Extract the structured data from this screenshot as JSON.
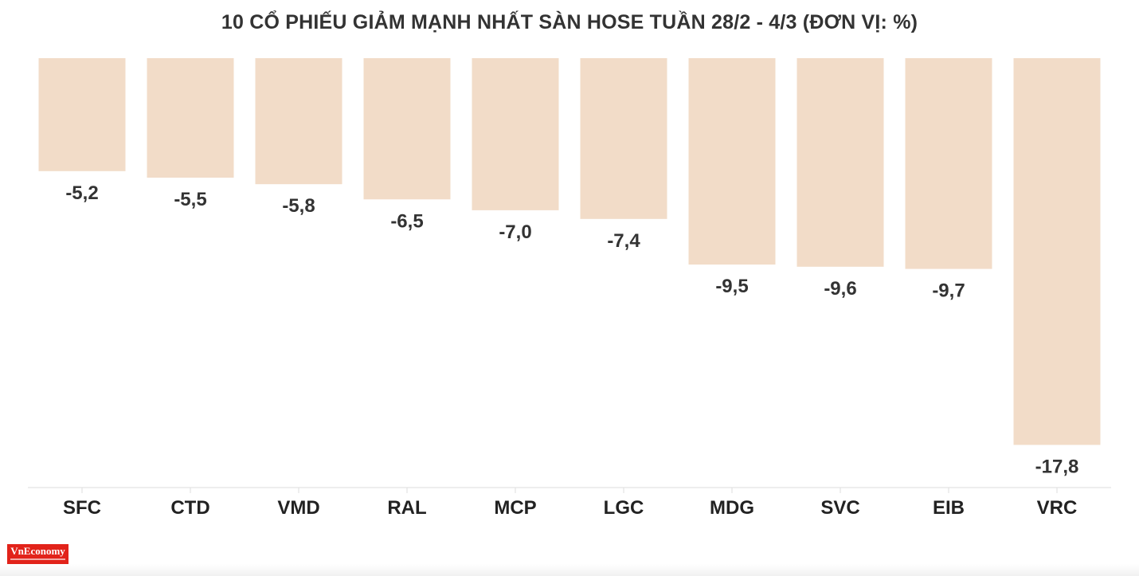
{
  "chart_data": {
    "type": "bar",
    "title": "10 CỔ PHIẾU GIẢM MẠNH NHẤT SÀN HOSE TUẦN 28/2 - 4/3 (ĐƠN VỊ: %)",
    "categories": [
      "SFC",
      "CTD",
      "VMD",
      "RAL",
      "MCP",
      "LGC",
      "MDG",
      "SVC",
      "EIB",
      "VRC"
    ],
    "values": [
      -5.2,
      -5.5,
      -5.8,
      -6.5,
      -7.0,
      -7.4,
      -9.5,
      -9.6,
      -9.7,
      -17.8
    ],
    "value_labels": [
      "-5,2",
      "-5,5",
      "-5,8",
      "-6,5",
      "-7,0",
      "-7,4",
      "-9,5",
      "-9,6",
      "-9,7",
      "-17,8"
    ],
    "ylim": [
      -19.8,
      0
    ],
    "bar_color": "#f2dcc8",
    "grid": false,
    "legend": "none"
  },
  "logo": {
    "text": "VnEconomy",
    "color": "#e2231a"
  }
}
